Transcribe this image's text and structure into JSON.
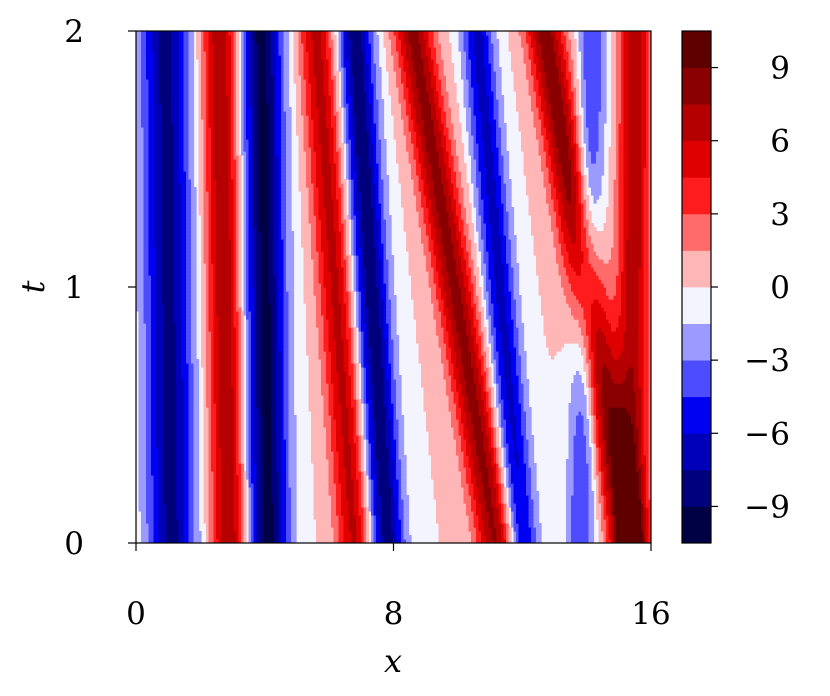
{
  "chart_data": {
    "type": "heatmap",
    "subtype": "filled-contour",
    "title": "",
    "xlabel": "x",
    "ylabel": "t",
    "xlim": [
      0,
      16
    ],
    "ylim": [
      0,
      2
    ],
    "x_ticks": [
      0,
      8,
      16
    ],
    "x_tick_labels": [
      "0",
      "8",
      "16"
    ],
    "y_ticks": [
      0,
      1,
      2
    ],
    "y_tick_labels": [
      "0",
      "1",
      "2"
    ],
    "grid": false,
    "colormap": "seismic",
    "colorbar": {
      "levels": [
        -10.5,
        -9,
        -7.5,
        -6,
        -4.5,
        -3,
        -1.5,
        0,
        1.5,
        3,
        4.5,
        6,
        7.5,
        9,
        10.5
      ],
      "colors": [
        "#000044",
        "#00007c",
        "#0000b8",
        "#0000f2",
        "#4d4dff",
        "#9a9aff",
        "#f4f4ff",
        "#ffb6b6",
        "#ff6a6a",
        "#ff1c1c",
        "#df0000",
        "#b40000",
        "#8a0000",
        "#5f0000"
      ],
      "tick_values": [
        -9,
        -6,
        -3,
        0,
        3,
        6,
        9
      ],
      "tick_labels": [
        "−9",
        "−6",
        "−3",
        "0",
        "3",
        "6",
        "9"
      ]
    },
    "stripes": [
      {
        "name": "blue-1",
        "x_at_t0": 1.1,
        "x_at_t2": 0.9,
        "amplitude": -8.0,
        "width": 0.75
      },
      {
        "name": "red-1",
        "x_at_t0": 2.9,
        "x_at_t2": 2.6,
        "amplitude": 7.5,
        "width": 0.55
      },
      {
        "name": "blue-2",
        "x_at_t0": 4.1,
        "x_at_t2": 3.9,
        "amplitude": -9.5,
        "width": 0.65
      },
      {
        "name": "red-2",
        "x_at_t0": 6.8,
        "x_at_t2": 5.6,
        "amplitude": 6.5,
        "width": 0.55
      },
      {
        "name": "blue-3",
        "x_at_t0": 7.8,
        "x_at_t2": 6.8,
        "amplitude": -8.5,
        "width": 0.55
      },
      {
        "name": "red-3",
        "x_at_t0": 11.2,
        "x_at_t2": 8.6,
        "amplitude": 8.0,
        "width": 0.6
      },
      {
        "name": "blue-4",
        "x_at_t0": 12.0,
        "x_at_t2": 10.6,
        "amplitude": -6.5,
        "width": 0.5
      },
      {
        "name": "red-4",
        "x_at_t0": 15.3,
        "x_at_t2": 12.7,
        "amplitude": 8.5,
        "width": 0.6
      },
      {
        "name": "blue-5",
        "x_at_t0": 13.8,
        "x_at_t2": 14.2,
        "amplitude": -4.5,
        "width": 0.45
      },
      {
        "name": "red-5",
        "x_at_t0": 15.4,
        "x_at_t2": 15.5,
        "amplitude": 7.0,
        "width": 0.5
      }
    ]
  }
}
